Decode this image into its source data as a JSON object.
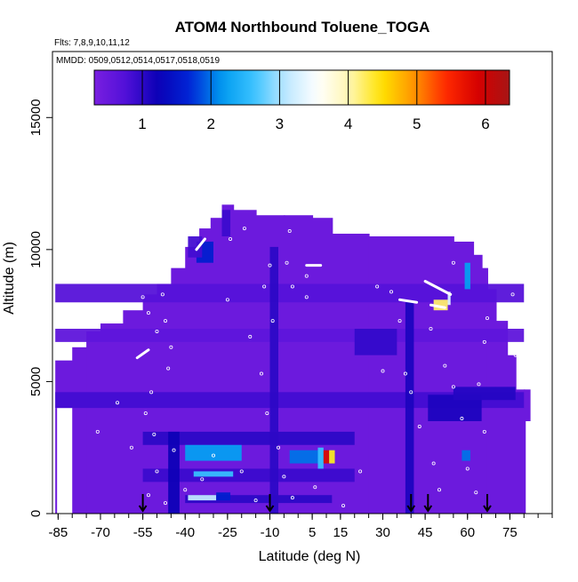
{
  "chart_data": {
    "type": "heatmap",
    "title": "ATOM4 Northbound Toluene_TOGA",
    "subtitle_flights": "Flts: 7,8,9,10,11,12",
    "subtitle_dates": "MMDD: 0509,0512,0514,0517,0518,0519",
    "xlabel": "Latitude (deg N)",
    "ylabel": "Altitude (m)",
    "xlim": [
      -87,
      90
    ],
    "ylim": [
      0,
      17500
    ],
    "x_ticks": [
      -85,
      -70,
      -55,
      -40,
      -25,
      -10,
      5,
      15,
      30,
      45,
      60,
      75
    ],
    "y_ticks": [
      0,
      5000,
      10000,
      15000
    ],
    "colorbar": {
      "min": 0.3,
      "max": 6.35,
      "ticks": [
        1,
        2,
        3,
        4,
        5,
        6
      ],
      "colors": [
        "#7a1fe0",
        "#5010d8",
        "#0a00b5",
        "#0026d6",
        "#009bf0",
        "#3ac2ff",
        "#bfe8ff",
        "#ffffff",
        "#fff6b0",
        "#ffe200",
        "#ff9500",
        "#ff2a00",
        "#d60000",
        "#a61515"
      ]
    },
    "background_value": 0.45,
    "envelope": [
      [
        -86,
        0,
        4000
      ],
      [
        -86,
        4000,
        5800
      ],
      [
        -80,
        0,
        6300
      ],
      [
        -75,
        0,
        6900
      ],
      [
        -70,
        0,
        7200
      ],
      [
        -62,
        0,
        7700
      ],
      [
        -55,
        0,
        8300
      ],
      [
        -50,
        0,
        8700
      ],
      [
        -45,
        0,
        9300
      ],
      [
        -40,
        0,
        10100
      ],
      [
        -35,
        0,
        10800
      ],
      [
        -31,
        0,
        11200
      ],
      [
        -27,
        0,
        11700
      ],
      [
        -23,
        0,
        11500
      ],
      [
        -15,
        0,
        11300
      ],
      [
        -5,
        0,
        11300
      ],
      [
        5,
        0,
        11200
      ],
      [
        12,
        0,
        10600
      ],
      [
        25,
        0,
        10500
      ],
      [
        40,
        0,
        10500
      ],
      [
        55,
        0,
        10300
      ],
      [
        62,
        0,
        9800
      ],
      [
        65,
        0,
        9300
      ],
      [
        67,
        0,
        8500
      ],
      [
        70,
        0,
        7300
      ],
      [
        74,
        0,
        6000
      ],
      [
        77,
        0,
        4700
      ],
      [
        80,
        0,
        3500
      ],
      [
        80,
        3500,
        4700
      ]
    ],
    "patches": [
      {
        "x0": -86,
        "x1": 80,
        "z0": 8000,
        "z1": 8700,
        "v": 0.7
      },
      {
        "x0": -86,
        "x1": 80,
        "z0": 6500,
        "z1": 7000,
        "v": 0.6
      },
      {
        "x0": -86,
        "x1": 80,
        "z0": 4000,
        "z1": 4600,
        "v": 0.85
      },
      {
        "x0": -55,
        "x1": 20,
        "z0": 2600,
        "z1": 3100,
        "v": 1.0
      },
      {
        "x0": -55,
        "x1": 20,
        "z0": 1200,
        "z1": 1700,
        "v": 0.9
      },
      {
        "x0": -40,
        "x1": 12,
        "z0": 400,
        "z1": 700,
        "v": 1.0
      },
      {
        "x0": -46,
        "x1": -42,
        "z0": 0,
        "z1": 3100,
        "v": 1.2
      },
      {
        "x0": -10,
        "x1": -7,
        "z0": 0,
        "z1": 10100,
        "v": 1.0
      },
      {
        "x0": 38,
        "x1": 41,
        "z0": 0,
        "z1": 8000,
        "v": 1.1
      },
      {
        "x0": 46,
        "x1": 65,
        "z0": 3500,
        "z1": 4500,
        "v": 1.1
      },
      {
        "x0": 20,
        "x1": 35,
        "z0": 6000,
        "z1": 7000,
        "v": 0.95
      },
      {
        "x0": 55,
        "x1": 77,
        "z0": 4300,
        "z1": 4800,
        "v": 1.05
      },
      {
        "x0": -36,
        "x1": -30,
        "z0": 9500,
        "z1": 10300,
        "v": 1.6
      },
      {
        "x0": -39,
        "x1": -34,
        "z0": 9700,
        "z1": 10500,
        "v": 0.85
      },
      {
        "x0": -27,
        "x1": -24,
        "z0": 10500,
        "z1": 11500,
        "v": 0.9
      },
      {
        "x0": -40,
        "x1": -20,
        "z0": 2000,
        "z1": 2600,
        "v": 2.2
      },
      {
        "x0": -37,
        "x1": -23,
        "z0": 1400,
        "z1": 1600,
        "v": 2.6
      },
      {
        "x0": -39,
        "x1": -29,
        "z0": 500,
        "z1": 700,
        "v": 3.1
      },
      {
        "x0": -29,
        "x1": -24,
        "z0": 500,
        "z1": 800,
        "v": 1.6
      },
      {
        "x0": -3,
        "x1": 13,
        "z0": 1900,
        "z1": 2400,
        "v": 2.0
      },
      {
        "x0": 7,
        "x1": 9,
        "z0": 1700,
        "z1": 2500,
        "v": 2.6
      },
      {
        "x0": 9,
        "x1": 11,
        "z0": 1900,
        "z1": 2400,
        "v": 5.8
      },
      {
        "x0": 11,
        "x1": 13,
        "z0": 1900,
        "z1": 2400,
        "v": 4.4
      },
      {
        "x0": 48,
        "x1": 53,
        "z0": 7700,
        "z1": 8100,
        "v": 4.2
      },
      {
        "x0": 53,
        "x1": 54,
        "z0": 7900,
        "z1": 8400,
        "v": 3.3
      },
      {
        "x0": 58,
        "x1": 61,
        "z0": 2000,
        "z1": 2400,
        "v": 2.0
      },
      {
        "x0": 59,
        "x1": 61,
        "z0": 8500,
        "z1": 9500,
        "v": 2.2
      }
    ],
    "points": [
      [
        -55,
        8200
      ],
      [
        -53,
        7600
      ],
      [
        -50,
        6900
      ],
      [
        -48,
        8300
      ],
      [
        -47,
        7300
      ],
      [
        -45,
        6300
      ],
      [
        -46,
        5500
      ],
      [
        -52,
        4600
      ],
      [
        -54,
        3800
      ],
      [
        -51,
        3000
      ],
      [
        -44,
        2400
      ],
      [
        -50,
        1600
      ],
      [
        -53,
        700
      ],
      [
        -47,
        400
      ],
      [
        -40,
        900
      ],
      [
        -34,
        1300
      ],
      [
        -30,
        2200
      ],
      [
        -25,
        8100
      ],
      [
        -17,
        6700
      ],
      [
        -12,
        8600
      ],
      [
        -10,
        9400
      ],
      [
        -9,
        7300
      ],
      [
        -13,
        5300
      ],
      [
        -11,
        3800
      ],
      [
        -7,
        2500
      ],
      [
        -5,
        1400
      ],
      [
        -2,
        600
      ],
      [
        3,
        9000
      ],
      [
        -2,
        8600
      ],
      [
        -4,
        9500
      ],
      [
        3,
        8200
      ],
      [
        6,
        1000
      ],
      [
        28,
        8600
      ],
      [
        30,
        5400
      ],
      [
        33,
        8400
      ],
      [
        36,
        7300
      ],
      [
        38,
        5300
      ],
      [
        40,
        4600
      ],
      [
        43,
        3300
      ],
      [
        47,
        7000
      ],
      [
        52,
        5600
      ],
      [
        55,
        4800
      ],
      [
        58,
        3600
      ],
      [
        60,
        1700
      ],
      [
        63,
        800
      ],
      [
        66,
        3100
      ],
      [
        64,
        4900
      ],
      [
        66,
        6500
      ],
      [
        67,
        7400
      ],
      [
        74,
        9400
      ],
      [
        76,
        8300
      ],
      [
        77,
        6000
      ],
      [
        68,
        9900
      ],
      [
        55,
        9500
      ],
      [
        -24,
        10400
      ],
      [
        -19,
        10800
      ],
      [
        -3,
        10700
      ],
      [
        -64,
        4200
      ],
      [
        -71,
        3100
      ],
      [
        -59,
        2500
      ],
      [
        -20,
        1600
      ],
      [
        -15,
        500
      ],
      [
        16,
        300
      ],
      [
        22,
        1600
      ],
      [
        48,
        1900
      ],
      [
        50,
        900
      ]
    ],
    "flight_segments": [
      [
        -57,
        5900,
        -53,
        6200
      ],
      [
        -36,
        10000,
        -33,
        10400
      ],
      [
        3,
        9400,
        8,
        9400
      ],
      [
        45,
        8800,
        54,
        8300
      ],
      [
        36,
        8100,
        42,
        8000
      ],
      [
        47,
        7900,
        52,
        7800
      ]
    ],
    "arrows": [
      -55,
      -10,
      40,
      46,
      67
    ]
  }
}
